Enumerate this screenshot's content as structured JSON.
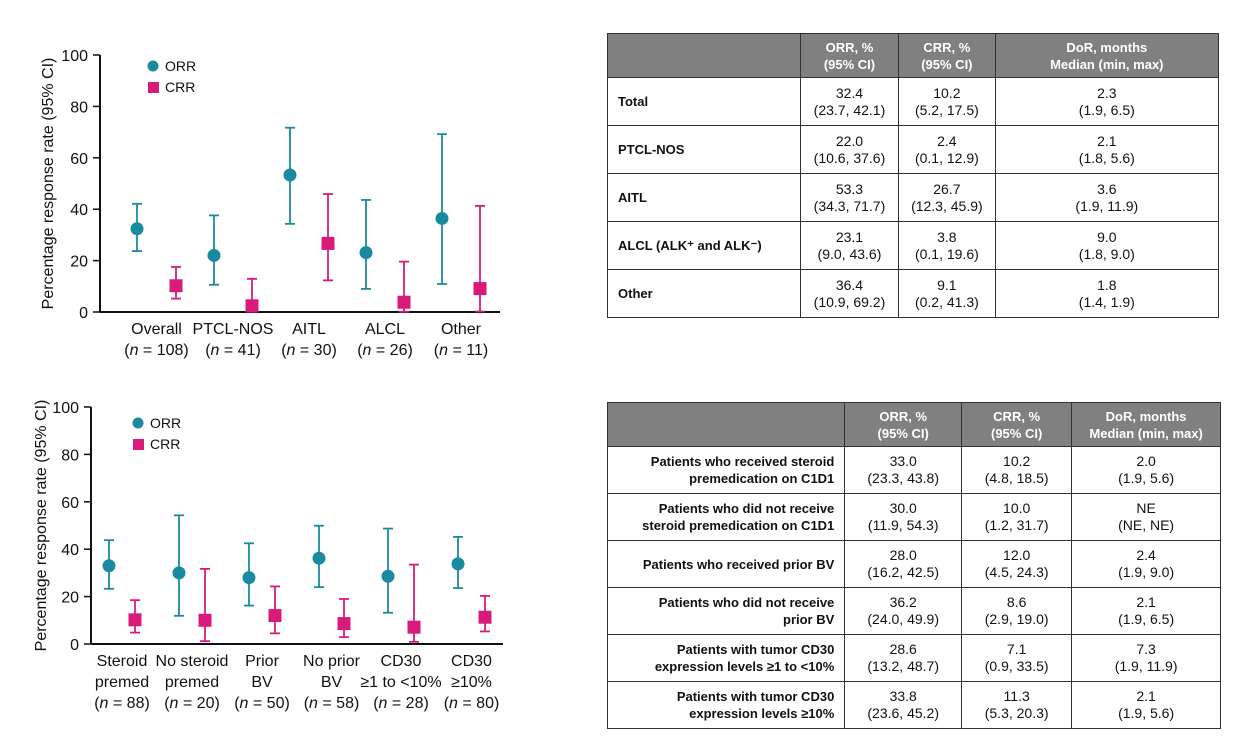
{
  "colors": {
    "orr": "#1a8aa0",
    "crr": "#d81b7a",
    "header": "#808080"
  },
  "chart_data": [
    {
      "type": "scatter-errorbar",
      "ylabel": "Percentage response rate (95% CI)",
      "ylim": [
        0,
        100
      ],
      "yticks": [
        0,
        20,
        40,
        60,
        80,
        100
      ],
      "legend": [
        "ORR",
        "CRR"
      ],
      "legend_position": "top-left",
      "categories": [
        [
          "Overall",
          "(n = 108)"
        ],
        [
          "PTCL-NOS",
          "(n = 41)"
        ],
        [
          "AITL",
          "(n = 30)"
        ],
        [
          "ALCL",
          "(n = 26)"
        ],
        [
          "Other",
          "(n = 11)"
        ]
      ],
      "series": [
        {
          "name": "ORR",
          "values": [
            32.4,
            22.0,
            53.3,
            23.1,
            36.4
          ],
          "lo": [
            23.7,
            10.6,
            34.3,
            9.0,
            10.9
          ],
          "hi": [
            42.1,
            37.6,
            71.7,
            43.6,
            69.2
          ]
        },
        {
          "name": "CRR",
          "values": [
            10.2,
            2.4,
            26.7,
            3.8,
            9.1
          ],
          "lo": [
            5.2,
            0.1,
            12.3,
            0.1,
            0.2
          ],
          "hi": [
            17.5,
            12.9,
            45.9,
            19.6,
            41.3
          ]
        }
      ]
    },
    {
      "type": "scatter-errorbar",
      "ylabel": "Percentage response rate (95% CI)",
      "ylim": [
        0,
        100
      ],
      "yticks": [
        0,
        20,
        40,
        60,
        80,
        100
      ],
      "legend": [
        "ORR",
        "CRR"
      ],
      "legend_position": "top-left",
      "categories": [
        [
          "Steroid",
          "premed",
          "(n = 88)"
        ],
        [
          "No steroid",
          "premed",
          "(n = 20)"
        ],
        [
          "Prior",
          "BV",
          "(n = 50)"
        ],
        [
          "No prior",
          "BV",
          "(n = 58)"
        ],
        [
          "CD30",
          "≥1 to <10%",
          "(n = 28)"
        ],
        [
          "CD30",
          "≥10%",
          "(n = 80)"
        ]
      ],
      "series": [
        {
          "name": "ORR",
          "values": [
            33.0,
            30.0,
            28.0,
            36.2,
            28.6,
            33.8
          ],
          "lo": [
            23.3,
            11.9,
            16.2,
            24.0,
            13.2,
            23.6
          ],
          "hi": [
            43.8,
            54.3,
            42.5,
            49.9,
            48.7,
            45.2
          ]
        },
        {
          "name": "CRR",
          "values": [
            10.2,
            10.0,
            12.0,
            8.6,
            7.1,
            11.3
          ],
          "lo": [
            4.8,
            1.2,
            4.5,
            2.9,
            0.9,
            5.3
          ],
          "hi": [
            18.5,
            31.7,
            24.3,
            19.0,
            33.5,
            20.3
          ]
        }
      ]
    }
  ],
  "table1": {
    "headers": [
      [
        "",
        ""
      ],
      [
        "ORR, %",
        "(95% CI)"
      ],
      [
        "CRR, %",
        "(95% CI)"
      ],
      [
        "DoR, months",
        "Median (min, max)"
      ]
    ],
    "rows": [
      {
        "label": "Total",
        "cells": [
          [
            "32.4",
            "(23.7, 42.1)"
          ],
          [
            "10.2",
            "(5.2, 17.5)"
          ],
          [
            "2.3",
            "(1.9, 6.5)"
          ]
        ]
      },
      {
        "label": "PTCL-NOS",
        "cells": [
          [
            "22.0",
            "(10.6, 37.6)"
          ],
          [
            "2.4",
            "(0.1, 12.9)"
          ],
          [
            "2.1",
            "(1.8, 5.6)"
          ]
        ]
      },
      {
        "label": "AITL",
        "cells": [
          [
            "53.3",
            "(34.3, 71.7)"
          ],
          [
            "26.7",
            "(12.3, 45.9)"
          ],
          [
            "3.6",
            "(1.9, 11.9)"
          ]
        ]
      },
      {
        "label": "ALCL (ALK⁺ and ALK⁻)",
        "cells": [
          [
            "23.1",
            "(9.0, 43.6)"
          ],
          [
            "3.8",
            "(0.1, 19.6)"
          ],
          [
            "9.0",
            "(1.8, 9.0)"
          ]
        ]
      },
      {
        "label": "Other",
        "cells": [
          [
            "36.4",
            "(10.9, 69.2)"
          ],
          [
            "9.1",
            "(0.2, 41.3)"
          ],
          [
            "1.8",
            "(1.4, 1.9)"
          ]
        ]
      }
    ]
  },
  "table2": {
    "headers": [
      [
        "",
        ""
      ],
      [
        "ORR, %",
        "(95% CI)"
      ],
      [
        "CRR, %",
        "(95% CI)"
      ],
      [
        "DoR, months",
        "Median (min, max)"
      ]
    ],
    "rows": [
      {
        "label": [
          "Patients who received steroid",
          "premedication on C1D1"
        ],
        "cells": [
          [
            "33.0",
            "(23.3, 43.8)"
          ],
          [
            "10.2",
            "(4.8, 18.5)"
          ],
          [
            "2.0",
            "(1.9, 5.6)"
          ]
        ]
      },
      {
        "label": [
          "Patients who did not receive",
          "steroid premedication on C1D1"
        ],
        "cells": [
          [
            "30.0",
            "(11.9, 54.3)"
          ],
          [
            "10.0",
            "(1.2, 31.7)"
          ],
          [
            "NE",
            "(NE, NE)"
          ]
        ]
      },
      {
        "label": [
          "Patients who received prior BV",
          ""
        ],
        "cells": [
          [
            "28.0",
            "(16.2, 42.5)"
          ],
          [
            "12.0",
            "(4.5, 24.3)"
          ],
          [
            "2.4",
            "(1.9, 9.0)"
          ]
        ]
      },
      {
        "label": [
          "Patients who did not receive",
          "prior BV"
        ],
        "cells": [
          [
            "36.2",
            "(24.0, 49.9)"
          ],
          [
            "8.6",
            "(2.9, 19.0)"
          ],
          [
            "2.1",
            "(1.9, 6.5)"
          ]
        ]
      },
      {
        "label": [
          "Patients with tumor CD30",
          "expression levels ≥1 to <10%"
        ],
        "cells": [
          [
            "28.6",
            "(13.2, 48.7)"
          ],
          [
            "7.1",
            "(0.9, 33.5)"
          ],
          [
            "7.3",
            "(1.9, 11.9)"
          ]
        ]
      },
      {
        "label": [
          "Patients with tumor CD30",
          "expression levels ≥10%"
        ],
        "cells": [
          [
            "33.8",
            "(23.6, 45.2)"
          ],
          [
            "11.3",
            "(5.3, 20.3)"
          ],
          [
            "2.1",
            "(1.9, 5.6)"
          ]
        ]
      }
    ]
  }
}
